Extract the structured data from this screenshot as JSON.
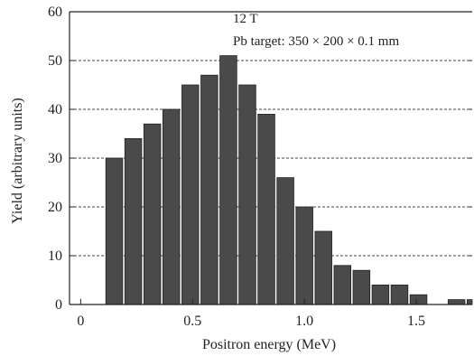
{
  "chart_data": {
    "type": "bar",
    "title": "",
    "xlabel": "Positron energy (MeV)",
    "ylabel": "Yield (arbitrary units)",
    "annotations": [
      "12 T",
      "Pb target: 350 × 200 × 0.1 mm"
    ],
    "xlim": [
      -0.05,
      1.75
    ],
    "ylim": [
      0,
      60
    ],
    "bin_width": 0.085,
    "x_ticks": [
      0,
      0.5,
      1.0,
      1.5
    ],
    "x_tick_labels": [
      "0",
      "0.5",
      "1.0",
      "1.5"
    ],
    "y_ticks": [
      0,
      10,
      20,
      30,
      40,
      50,
      60
    ],
    "y_tick_labels": [
      "0",
      "10",
      "20",
      "30",
      "40",
      "50",
      "60"
    ],
    "grid": "horizontal dashed",
    "x": [
      0.15,
      0.235,
      0.32,
      0.405,
      0.49,
      0.575,
      0.66,
      0.745,
      0.83,
      0.915,
      1.0,
      1.085,
      1.17,
      1.255,
      1.34,
      1.425,
      1.51,
      1.595,
      1.68,
      1.765
    ],
    "values": [
      30,
      34,
      37,
      40,
      45,
      47,
      51,
      45,
      39,
      26,
      20,
      15,
      8,
      7,
      4,
      4,
      2,
      0,
      1,
      1
    ],
    "bar_color": "#4a4a4a"
  }
}
